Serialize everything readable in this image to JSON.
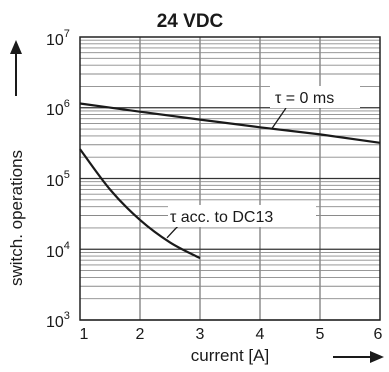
{
  "chart_data": {
    "type": "line",
    "title": "24 VDC",
    "xlabel": "current [A]",
    "ylabel": "switch. operations",
    "xlim": [
      1,
      6
    ],
    "ylim": [
      1000,
      10000000
    ],
    "y_scale": "log",
    "grid": true,
    "x_ticks": [
      "1",
      "2",
      "3",
      "4",
      "5",
      "6"
    ],
    "y_ticks": [
      {
        "base": "10",
        "exp": "3",
        "value": 1000
      },
      {
        "base": "10",
        "exp": "4",
        "value": 10000
      },
      {
        "base": "10",
        "exp": "5",
        "value": 100000
      },
      {
        "base": "10",
        "exp": "6",
        "value": 1000000
      },
      {
        "base": "10",
        "exp": "7",
        "value": 10000000
      }
    ],
    "series": [
      {
        "name": "τ = 0 ms",
        "x": [
          1,
          2,
          3,
          4,
          5,
          6
        ],
        "y": [
          1150000,
          880000,
          680000,
          530000,
          420000,
          320000
        ]
      },
      {
        "name": "τ acc. to DC13",
        "x": [
          1,
          1.5,
          2,
          2.5,
          3
        ],
        "y": [
          260000,
          70000,
          26000,
          12500,
          7500
        ]
      }
    ]
  }
}
